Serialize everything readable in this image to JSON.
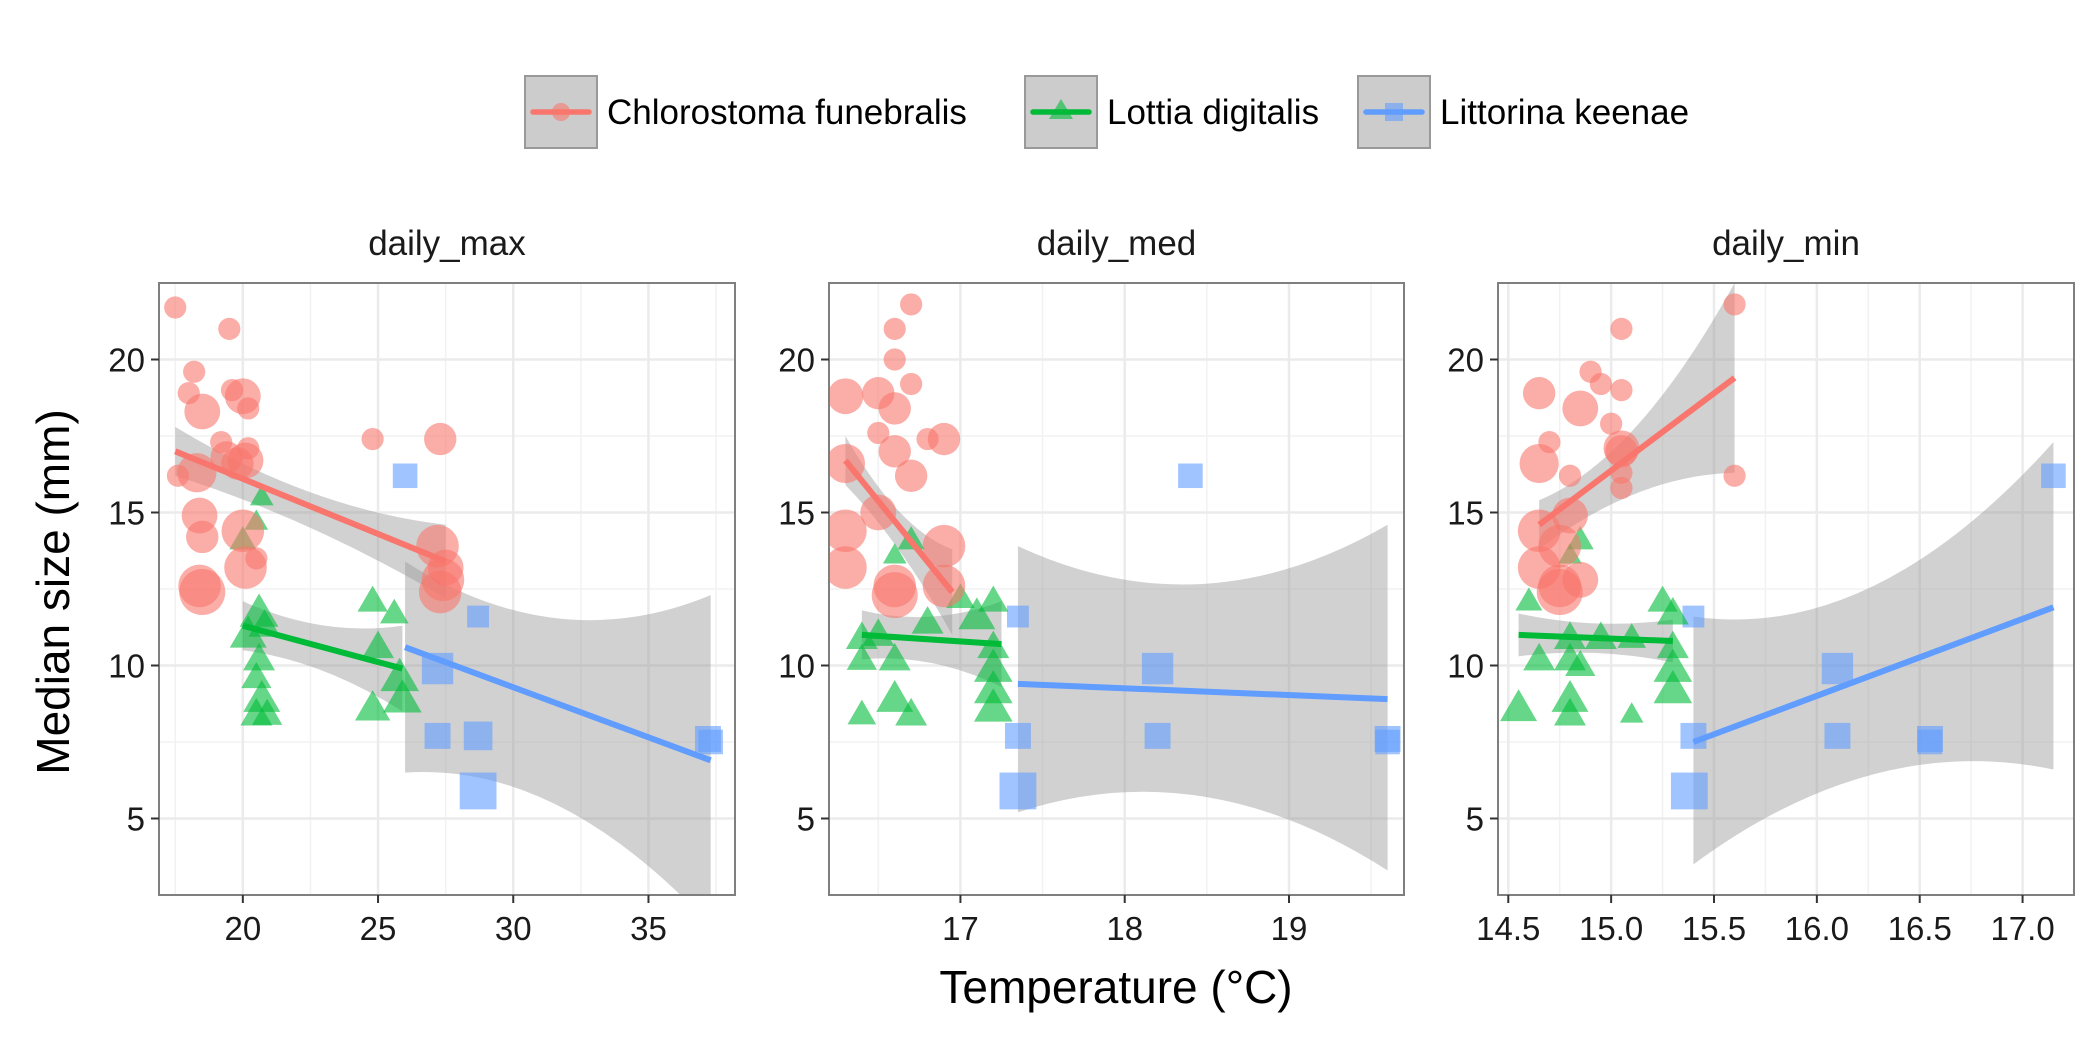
{
  "chart_data": {
    "type": "scatter",
    "xlabel": "Temperature (°C)",
    "ylabel": "Median size (mm)",
    "ylim": [
      2.5,
      22.5
    ],
    "y_ticks": [
      5,
      10,
      15,
      20
    ],
    "grid": true,
    "legend_position": "top",
    "series": [
      {
        "name": "Chlorostoma funebralis",
        "color": "#F8766D",
        "marker": "circle"
      },
      {
        "name": "Lottia digitalis",
        "color": "#00BA38",
        "marker": "triangle"
      },
      {
        "name": "Littorina keenae",
        "color": "#619CFF",
        "marker": "square"
      }
    ],
    "panels": [
      {
        "title": "daily_max",
        "xlim": [
          16.9,
          38.2
        ],
        "x_ticks": [
          20,
          25,
          30,
          35
        ],
        "x_tick_labels": [
          "20",
          "25",
          "30",
          "35"
        ],
        "points": {
          "Chlorostoma funebralis": [
            [
              17.5,
              21.7,
              0.3
            ],
            [
              19.5,
              21.0,
              0.3
            ],
            [
              17.6,
              16.2,
              0.3
            ],
            [
              18.2,
              19.6,
              0.3
            ],
            [
              18.0,
              18.9,
              0.3
            ],
            [
              18.5,
              18.3,
              0.7
            ],
            [
              19.6,
              19.0,
              0.3
            ],
            [
              20.0,
              18.8,
              0.7
            ],
            [
              20.2,
              18.4,
              0.3
            ],
            [
              19.2,
              17.3,
              0.3
            ],
            [
              19.4,
              16.8,
              0.6
            ],
            [
              18.3,
              16.3,
              0.8
            ],
            [
              19.8,
              16.6,
              0.6
            ],
            [
              20.1,
              16.7,
              0.7
            ],
            [
              18.4,
              14.9,
              0.7
            ],
            [
              18.5,
              14.2,
              0.6
            ],
            [
              20.0,
              14.4,
              0.9
            ],
            [
              20.1,
              13.2,
              0.9
            ],
            [
              18.4,
              12.6,
              0.9
            ],
            [
              18.5,
              12.4,
              1.0
            ],
            [
              20.2,
              17.1,
              0.3
            ],
            [
              20.5,
              13.5,
              0.3
            ],
            [
              24.8,
              17.4,
              0.3
            ],
            [
              27.3,
              17.4,
              0.6
            ],
            [
              27.2,
              13.9,
              0.9
            ],
            [
              27.5,
              13.2,
              0.7
            ],
            [
              27.4,
              12.8,
              0.9
            ],
            [
              27.3,
              12.4,
              0.9
            ]
          ],
          "Lottia digitalis": [
            [
              20.0,
              14.1,
              0.45
            ],
            [
              20.7,
              15.5,
              0.35
            ],
            [
              20.5,
              14.7,
              0.35
            ],
            [
              20.6,
              11.7,
              0.8
            ],
            [
              20.2,
              11.0,
              0.75
            ],
            [
              20.8,
              11.3,
              0.6
            ],
            [
              20.6,
              10.2,
              0.6
            ],
            [
              20.5,
              9.6,
              0.55
            ],
            [
              20.7,
              8.9,
              0.75
            ],
            [
              20.5,
              8.4,
              0.6
            ],
            [
              20.9,
              8.4,
              0.55
            ],
            [
              24.8,
              12.1,
              0.55
            ],
            [
              25.6,
              11.7,
              0.5
            ],
            [
              25.0,
              10.6,
              0.6
            ],
            [
              24.8,
              8.6,
              0.7
            ],
            [
              25.8,
              9.6,
              0.8
            ],
            [
              25.9,
              8.9,
              0.8
            ]
          ],
          "Littorina keenae": [
            [
              26.0,
              16.2,
              0.55
            ],
            [
              28.7,
              11.6,
              0.45
            ],
            [
              27.2,
              9.9,
              0.8
            ],
            [
              27.2,
              7.7,
              0.6
            ],
            [
              28.7,
              7.7,
              0.7
            ],
            [
              28.7,
              5.9,
              1.0
            ],
            [
              37.2,
              7.6,
              0.6
            ],
            [
              37.3,
              7.5,
              0.55
            ]
          ]
        },
        "fits": {
          "Chlorostoma funebralis": {
            "x": [
              17.5,
              27.5
            ],
            "y": [
              17.0,
              13.4
            ],
            "ci_lower": [
              16.2,
              12.2
            ],
            "ci_upper": [
              17.8,
              14.6
            ]
          },
          "Lottia digitalis": {
            "x": [
              20.0,
              25.9
            ],
            "y": [
              11.3,
              9.9
            ],
            "ci_lower": [
              10.5,
              8.5
            ],
            "ci_upper": [
              12.1,
              11.3
            ]
          },
          "Littorina keenae": {
            "x": [
              26.0,
              37.3
            ],
            "y": [
              10.6,
              6.9
            ],
            "ci_lower": [
              6.5,
              1.5
            ],
            "ci_upper": [
              13.4,
              12.3
            ]
          }
        }
      },
      {
        "title": "daily_med",
        "xlim": [
          16.2,
          19.7
        ],
        "x_ticks": [
          17,
          18,
          19
        ],
        "x_tick_labels": [
          "17",
          "18",
          "19"
        ],
        "points": {
          "Chlorostoma funebralis": [
            [
              16.7,
              21.8,
              0.3
            ],
            [
              16.6,
              21.0,
              0.3
            ],
            [
              16.6,
              20.0,
              0.3
            ],
            [
              16.7,
              19.2,
              0.3
            ],
            [
              16.5,
              18.9,
              0.6
            ],
            [
              16.3,
              18.8,
              0.7
            ],
            [
              16.6,
              18.4,
              0.6
            ],
            [
              16.5,
              17.6,
              0.3
            ],
            [
              16.8,
              17.4,
              0.3
            ],
            [
              16.9,
              17.4,
              0.6
            ],
            [
              16.6,
              17.0,
              0.6
            ],
            [
              16.3,
              16.6,
              0.8
            ],
            [
              16.7,
              16.2,
              0.6
            ],
            [
              16.5,
              15.0,
              0.7
            ],
            [
              16.3,
              14.4,
              0.9
            ],
            [
              16.9,
              13.9,
              0.9
            ],
            [
              16.3,
              13.2,
              0.9
            ],
            [
              16.6,
              12.6,
              0.9
            ],
            [
              16.9,
              12.6,
              0.9
            ],
            [
              16.6,
              12.3,
              1.0
            ]
          ],
          "Lottia digitalis": [
            [
              16.7,
              14.1,
              0.45
            ],
            [
              16.6,
              13.6,
              0.35
            ],
            [
              16.5,
              11.0,
              0.6
            ],
            [
              16.8,
              11.4,
              0.6
            ],
            [
              16.4,
              10.9,
              0.6
            ],
            [
              16.6,
              10.2,
              0.6
            ],
            [
              16.4,
              10.2,
              0.55
            ],
            [
              16.6,
              8.9,
              0.75
            ],
            [
              16.4,
              8.4,
              0.5
            ],
            [
              16.7,
              8.4,
              0.6
            ],
            [
              17.2,
              12.1,
              0.55
            ],
            [
              17.0,
              12.2,
              0.5
            ],
            [
              17.1,
              11.6,
              0.75
            ],
            [
              17.2,
              10.6,
              0.6
            ],
            [
              17.2,
              9.9,
              0.8
            ],
            [
              17.2,
              9.2,
              0.8
            ],
            [
              17.2,
              8.6,
              0.8
            ]
          ],
          "Littorina keenae": [
            [
              18.4,
              16.2,
              0.55
            ],
            [
              17.35,
              11.6,
              0.45
            ],
            [
              18.2,
              9.9,
              0.8
            ],
            [
              17.35,
              7.7,
              0.6
            ],
            [
              18.2,
              7.7,
              0.6
            ],
            [
              17.35,
              5.9,
              1.0
            ],
            [
              19.6,
              7.6,
              0.6
            ],
            [
              19.6,
              7.5,
              0.55
            ]
          ]
        },
        "fits": {
          "Chlorostoma funebralis": {
            "x": [
              16.3,
              16.95
            ],
            "y": [
              16.7,
              12.4
            ],
            "ci_lower": [
              15.9,
              11.0
            ],
            "ci_upper": [
              17.5,
              13.8
            ]
          },
          "Lottia digitalis": {
            "x": [
              16.4,
              17.25
            ],
            "y": [
              11.0,
              10.7
            ],
            "ci_lower": [
              10.2,
              9.3
            ],
            "ci_upper": [
              11.8,
              12.1
            ]
          },
          "Littorina keenae": {
            "x": [
              17.35,
              19.6
            ],
            "y": [
              9.4,
              8.9
            ],
            "ci_lower": [
              5.2,
              3.3
            ],
            "ci_upper": [
              13.9,
              14.6
            ]
          }
        }
      },
      {
        "title": "daily_min",
        "xlim": [
          14.45,
          17.25
        ],
        "x_ticks": [
          14.5,
          15.0,
          15.5,
          16.0,
          16.5,
          17.0
        ],
        "x_tick_labels": [
          "14.5",
          "15.0",
          "15.5",
          "16.0",
          "16.5",
          "17.0"
        ],
        "points": {
          "Chlorostoma funebralis": [
            [
              15.05,
              21.0,
              0.3
            ],
            [
              15.6,
              21.8,
              0.3
            ],
            [
              14.9,
              19.6,
              0.3
            ],
            [
              14.95,
              19.2,
              0.3
            ],
            [
              15.05,
              19.0,
              0.3
            ],
            [
              14.65,
              18.9,
              0.6
            ],
            [
              14.85,
              18.4,
              0.7
            ],
            [
              15.0,
              17.9,
              0.3
            ],
            [
              14.7,
              17.3,
              0.3
            ],
            [
              15.05,
              17.1,
              0.7
            ],
            [
              15.05,
              17.0,
              0.6
            ],
            [
              14.65,
              16.6,
              0.8
            ],
            [
              14.8,
              16.2,
              0.3
            ],
            [
              15.05,
              16.3,
              0.3
            ],
            [
              15.05,
              15.8,
              0.3
            ],
            [
              15.6,
              16.2,
              0.3
            ],
            [
              14.8,
              14.9,
              0.7
            ],
            [
              14.65,
              14.4,
              0.9
            ],
            [
              14.75,
              13.9,
              0.9
            ],
            [
              14.65,
              13.2,
              0.9
            ],
            [
              14.75,
              12.6,
              0.9
            ],
            [
              14.75,
              12.4,
              1.0
            ],
            [
              14.85,
              12.8,
              0.7
            ]
          ],
          "Lottia digitalis": [
            [
              14.6,
              12.1,
              0.45
            ],
            [
              14.85,
              14.1,
              0.45
            ],
            [
              14.8,
              13.6,
              0.35
            ],
            [
              14.65,
              10.2,
              0.6
            ],
            [
              14.8,
              10.9,
              0.6
            ],
            [
              14.95,
              10.9,
              0.6
            ],
            [
              14.8,
              10.2,
              0.6
            ],
            [
              14.85,
              10.0,
              0.55
            ],
            [
              14.55,
              8.6,
              0.75
            ],
            [
              14.8,
              8.9,
              0.75
            ],
            [
              14.8,
              8.4,
              0.6
            ],
            [
              15.1,
              10.9,
              0.5
            ],
            [
              15.3,
              11.7,
              0.6
            ],
            [
              15.25,
              12.1,
              0.55
            ],
            [
              15.3,
              10.6,
              0.6
            ],
            [
              15.3,
              9.9,
              0.8
            ],
            [
              15.3,
              9.2,
              0.8
            ],
            [
              15.1,
              8.4,
              0.35
            ]
          ],
          "Littorina keenae": [
            [
              17.15,
              16.2,
              0.55
            ],
            [
              15.4,
              11.6,
              0.45
            ],
            [
              16.1,
              9.9,
              0.8
            ],
            [
              15.4,
              7.7,
              0.6
            ],
            [
              16.1,
              7.7,
              0.6
            ],
            [
              16.55,
              7.6,
              0.6
            ],
            [
              16.55,
              7.5,
              0.55
            ],
            [
              15.38,
              5.9,
              1.0
            ]
          ]
        },
        "fits": {
          "Chlorostoma funebralis": {
            "x": [
              14.65,
              15.6
            ],
            "y": [
              14.6,
              19.4
            ],
            "ci_lower": [
              13.8,
              16.3
            ],
            "ci_upper": [
              15.4,
              22.5
            ]
          },
          "Lottia digitalis": {
            "x": [
              14.55,
              15.3
            ],
            "y": [
              11.0,
              10.8
            ],
            "ci_lower": [
              10.3,
              10.1
            ],
            "ci_upper": [
              11.7,
              11.5
            ]
          },
          "Littorina keenae": {
            "x": [
              15.4,
              17.15
            ],
            "y": [
              7.5,
              11.9
            ],
            "ci_lower": [
              3.5,
              6.6
            ],
            "ci_upper": [
              11.6,
              17.3
            ]
          }
        }
      }
    ]
  }
}
